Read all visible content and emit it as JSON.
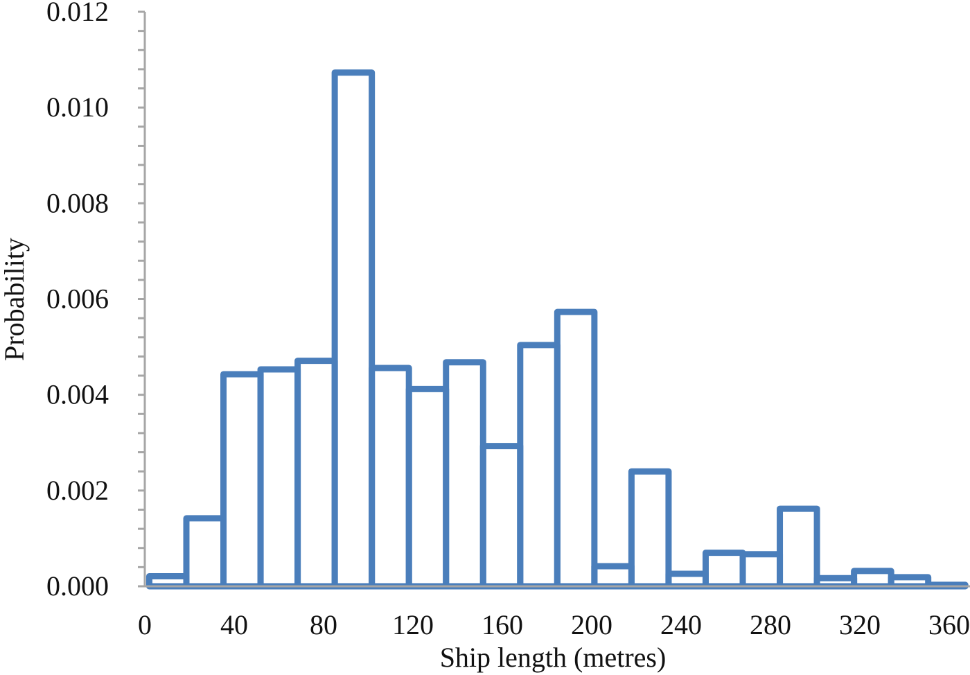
{
  "chart_data": {
    "type": "bar",
    "subtype": "histogram",
    "title": "",
    "xlabel": "Ship length (metres)",
    "ylabel": "Probability",
    "xlim": [
      0,
      370
    ],
    "ylim": [
      0,
      0.012
    ],
    "x_ticks": [
      "0",
      "40",
      "80",
      "120",
      "160",
      "200",
      "240",
      "280",
      "320",
      "360"
    ],
    "y_ticks": [
      "0.000",
      "0.002",
      "0.004",
      "0.006",
      "0.008",
      "0.010",
      "0.012"
    ],
    "bin_start": 2,
    "bin_width": 16.6,
    "values": [
      0.00021,
      0.00142,
      0.00443,
      0.00453,
      0.00471,
      0.01073,
      0.00456,
      0.00412,
      0.00468,
      0.00293,
      0.00504,
      0.00573,
      0.00042,
      0.0024,
      0.00026,
      0.0007,
      0.00067,
      0.00162,
      0.00017,
      0.00032,
      0.00019,
      3e-05
    ],
    "color": "#4a7ebb",
    "grid": false,
    "legend": null
  }
}
